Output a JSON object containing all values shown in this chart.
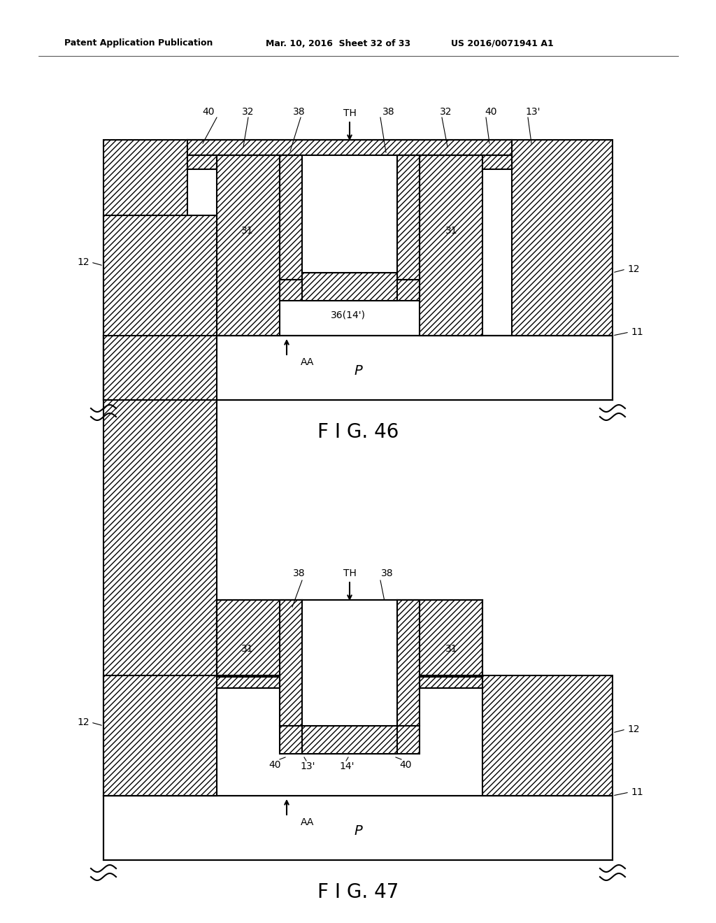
{
  "bg_color": "#ffffff",
  "line_color": "#000000",
  "header_text_left": "Patent Application Publication",
  "header_text_mid": "Mar. 10, 2016  Sheet 32 of 33",
  "header_text_right": "US 2016/0071941 A1",
  "fig46_caption": "F I G. 46",
  "fig47_caption": "F I G. 47"
}
